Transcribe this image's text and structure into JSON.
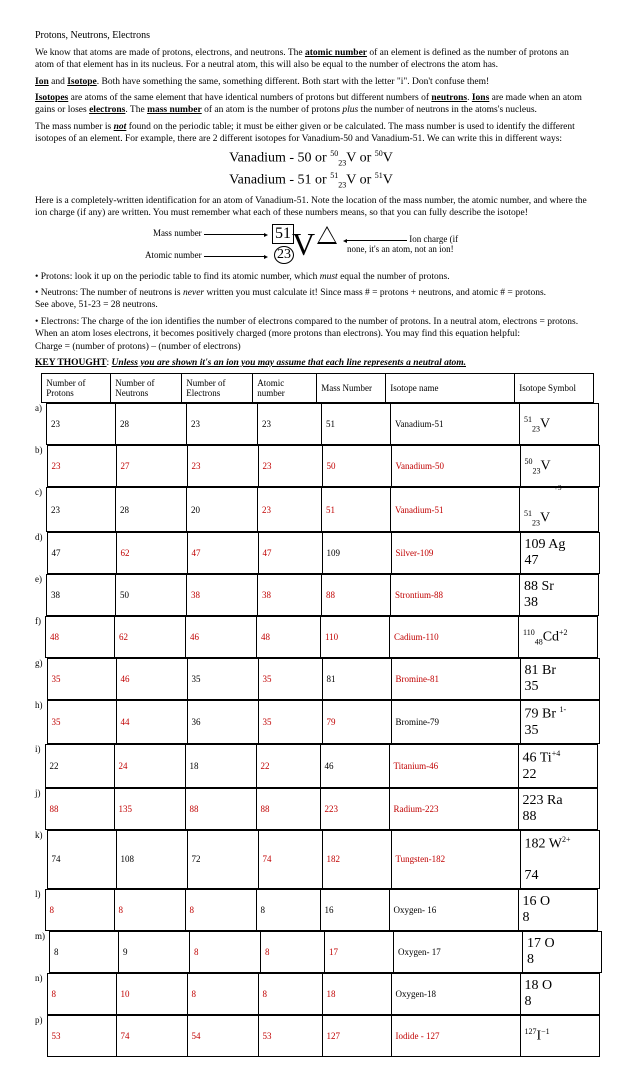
{
  "title": "Protons, Neutrons, Electrons",
  "p1": "We know that atoms are made of protons, electrons, and neutrons. The ",
  "p1b": "atomic number",
  "p1c": " of an element is defined as the number of protons an atom of that element has in its nucleus. For a neutral atom, this will also be equal to the number of electrons the atom has.",
  "p2a": "Ion",
  "p2b": " and ",
  "p2c": "Isotope",
  "p2d": ". Both have something the same, something different. Both start with the letter \"i\". Don't confuse them!",
  "p3a": "Isotopes",
  "p3b": " are atoms of the same element that have identical numbers of protons but different numbers of ",
  "p3c": "neutrons",
  "p3d": ". ",
  "p3e": "Ions",
  "p3f": " are made when an atom gains or loses ",
  "p3g": "electrons",
  "p3h": ". The ",
  "p3i": "mass number",
  "p3j": " of an atom is the number of protons ",
  "p3k": "plus",
  "p3l": " the number of neutrons in the atoms's nucleus.",
  "p4a": "The mass number is ",
  "p4b": "not",
  "p4c": " found on the periodic table; it must be either given or be calculated. The mass number is used to identify the different isotopes of an element. For example, there are 2 different isotopes for Vanadium-50 and Vanadium-51. We can write this in different ways:",
  "eq1": "Vanadium - 50 or ",
  "eq2": "Vanadium - 51 or ",
  "p5": "Here is a completely-written identification for an atom of Vanadium-51. Note the location of the mass number, the atomic number, and where the ion charge (if any) are written. You must remember what each of these numbers means, so that you can fully describe the isotope!",
  "dMass": "Mass number",
  "dAtomic": "Atomic number",
  "dIon": "Ion charge (if none, it's an atom, not an ion!",
  "bul1a": "• Protons: look it up on the periodic table to find its atomic number, which ",
  "bul1b": "must",
  "bul1c": " equal the number of protons.",
  "bul2a": "• Neutrons: The number of neutrons is ",
  "bul2b": "never",
  "bul2c": " written you must calculate it! Since mass # = protons + neutrons, and atomic # = protons.",
  "bul2d": "  See above, 51-23 = 28 neutrons.",
  "bul3": "• Electrons: The charge of the ion identifies the number of electrons compared to the number of protons. In a neutral atom, electrons = protons. When an atom loses electrons, it becomes positively charged (more protons than electrons). You may find this equation helpful:",
  "bul3b": "Charge = (number of protons) – (number of electrons)",
  "key": "KEY THOUGHT",
  "keyb": ": ",
  "keyc": "Unless you are shown it's an ion you may assume that each line represents a neutral atom.",
  "headers": [
    "Number of Protons",
    "Number of Neutrons",
    "Number of Electrons",
    "Atomic number",
    "Mass Number",
    "Isotope name",
    "Isotope Symbol"
  ],
  "rows": [
    {
      "lab": "a)",
      "c": [
        "23",
        "28",
        "23",
        "23",
        "51",
        "Vanadium-51"
      ],
      "red": [
        0,
        0,
        0,
        0,
        0,
        0
      ],
      "sym": "<sup>51</sup><sub>23</sub>V"
    },
    {
      "lab": "b)",
      "c": [
        "23",
        "27",
        "23",
        "23",
        "50",
        "Vanadium-50"
      ],
      "red": [
        1,
        1,
        1,
        1,
        1,
        1
      ],
      "sym": "<sup>50</sup><sub>23</sub>V"
    },
    {
      "lab": "c)",
      "c": [
        "23",
        "28",
        "20",
        "23",
        "51",
        "Vanadium-51"
      ],
      "red": [
        0,
        0,
        0,
        1,
        1,
        1
      ],
      "sym": "<sup style='position:relative;left:30px;top:-8px;font-size:7px'>+3</sup><br><sup>51</sup><sub>23</sub>V"
    },
    {
      "lab": "d)",
      "c": [
        "47",
        "62",
        "47",
        "47",
        "109",
        "Silver-109"
      ],
      "red": [
        0,
        1,
        1,
        1,
        0,
        1
      ],
      "sym": "109 Ag<br>47"
    },
    {
      "lab": "e)",
      "c": [
        "38",
        "50",
        "38",
        "38",
        "88",
        "Strontium-88"
      ],
      "red": [
        0,
        0,
        1,
        1,
        1,
        1
      ],
      "sym": "88 Sr<br>38"
    },
    {
      "lab": "f)",
      "c": [
        "48",
        "62",
        "46",
        "48",
        "110",
        "Cadium-110"
      ],
      "red": [
        1,
        1,
        1,
        1,
        1,
        1
      ],
      "sym": "<sup>110</sup><sub>48</sub>Cd<sup>+2</sup>"
    },
    {
      "lab": "g)",
      "c": [
        "35",
        "46",
        "35",
        "35",
        "81",
        "Bromine-81"
      ],
      "red": [
        1,
        1,
        0,
        1,
        0,
        1
      ],
      "sym": "81 Br<br>35"
    },
    {
      "lab": "h)",
      "c": [
        "35",
        "44",
        "36",
        "35",
        "79",
        "Bromine-79"
      ],
      "red": [
        1,
        1,
        0,
        1,
        1,
        0
      ],
      "sym": "79 Br <sup>1-</sup><br>35"
    },
    {
      "lab": "i)",
      "c": [
        "22",
        "24",
        "18",
        "22",
        "46",
        "Titanium-46"
      ],
      "red": [
        0,
        1,
        0,
        1,
        0,
        1
      ],
      "sym": "46 Ti<sup>+4</sup><br>22"
    },
    {
      "lab": "j)",
      "c": [
        "88",
        "135",
        "88",
        "88",
        "223",
        "Radium-223"
      ],
      "red": [
        1,
        1,
        1,
        1,
        1,
        1
      ],
      "sym": "223 Ra<br>88"
    },
    {
      "lab": "k)",
      "c": [
        "74",
        "108",
        "72",
        "74",
        "182",
        "Tungsten-182"
      ],
      "red": [
        0,
        0,
        0,
        1,
        1,
        1
      ],
      "sym": "182 W<sup>2+</sup><br><br>74"
    },
    {
      "lab": "l)",
      "c": [
        "8",
        "8",
        "8",
        "8",
        "16",
        "Oxygen- 16"
      ],
      "red": [
        1,
        1,
        1,
        0,
        0,
        0
      ],
      "sym": "16 O<br>  8"
    },
    {
      "lab": "m)",
      "c": [
        "8",
        "9",
        "8",
        "8",
        "17",
        "Oxygen- 17"
      ],
      "red": [
        0,
        0,
        1,
        1,
        1,
        0
      ],
      "sym": "17 O<br>  8"
    },
    {
      "lab": "n)",
      "c": [
        "8",
        "10",
        "8",
        "8",
        "18",
        "Oxygen-18"
      ],
      "red": [
        1,
        1,
        1,
        1,
        1,
        0
      ],
      "sym": "18 O<br>  8"
    },
    {
      "lab": "p)",
      "c": [
        "53",
        "74",
        "54",
        "53",
        "127",
        "Iodide - 127"
      ],
      "red": [
        1,
        1,
        1,
        1,
        1,
        1
      ],
      "sym": "<sup>127</sup>I<sup>−1</sup>"
    }
  ]
}
